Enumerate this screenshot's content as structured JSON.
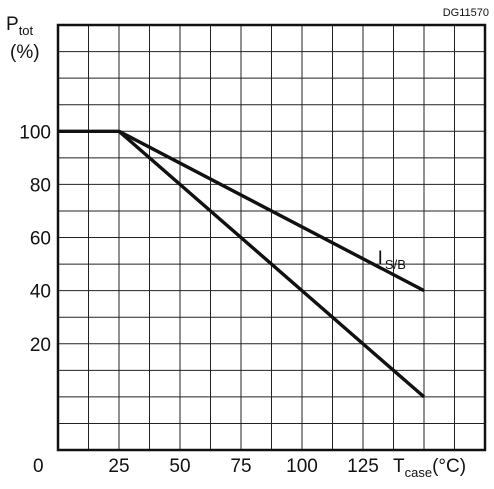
{
  "figure_code": "DG11570",
  "y_label": {
    "main": "P",
    "sub": "tot",
    "unit": "(%)"
  },
  "x_label": {
    "main": "T",
    "sub": "case",
    "unit": "(°C)"
  },
  "chart_data": {
    "type": "line",
    "title": "",
    "xlabel": "T case (°C)",
    "ylabel": "P tot (%)",
    "xlim": [
      0,
      175
    ],
    "ylim": [
      -20,
      140
    ],
    "grid": true,
    "x_ticks": [
      {
        "value": 0,
        "label": "0"
      },
      {
        "value": 25,
        "label": "25"
      },
      {
        "value": 50,
        "label": "50"
      },
      {
        "value": 75,
        "label": "75"
      },
      {
        "value": 100,
        "label": "100"
      },
      {
        "value": 125,
        "label": "125"
      }
    ],
    "y_ticks": [
      {
        "value": 20,
        "label": "20"
      },
      {
        "value": 40,
        "label": "40"
      },
      {
        "value": 60,
        "label": "60"
      },
      {
        "value": 80,
        "label": "80"
      },
      {
        "value": 100,
        "label": "100"
      }
    ],
    "series": [
      {
        "x": [
          0,
          25,
          150
        ],
        "y": [
          100,
          100,
          0
        ]
      },
      {
        "name": "IS/B",
        "x": [
          25,
          150
        ],
        "y": [
          100,
          40
        ]
      }
    ],
    "annotations": [
      {
        "text": "I",
        "sub": "S/B",
        "x": 131,
        "y": 50
      }
    ]
  }
}
